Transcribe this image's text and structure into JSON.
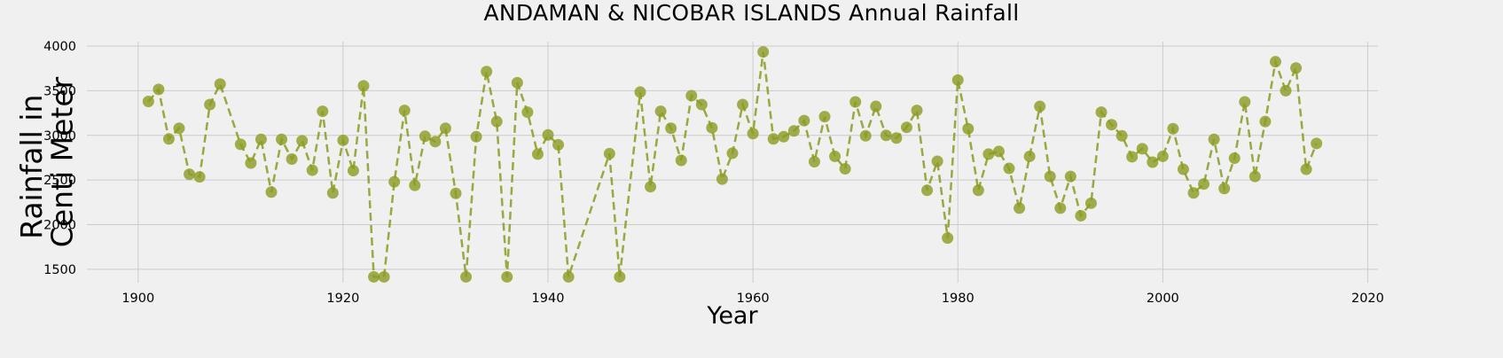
{
  "chart_data": {
    "type": "line",
    "title": "ANDAMAN & NICOBAR ISLANDS Annual Rainfall",
    "xlabel": "Year",
    "ylabel": [
      "Rainfall in",
      "Centi Meter"
    ],
    "xlim": [
      1895,
      2021
    ],
    "ylim": [
      1350,
      4050
    ],
    "xticks": [
      1900,
      1920,
      1940,
      1960,
      1980,
      2000,
      2020
    ],
    "yticks": [
      1500,
      2000,
      2500,
      3000,
      3500,
      4000
    ],
    "grid": true,
    "line_style": "dashed",
    "marker": "circle",
    "color": "#8c9b1e",
    "series": [
      {
        "x": [
          1901,
          1902,
          1903,
          1904,
          1905,
          1906,
          1907,
          1908,
          1910,
          1911,
          1912,
          1913,
          1914,
          1915,
          1916,
          1917,
          1918,
          1919,
          1920,
          1921,
          1922,
          1923,
          1924,
          1925,
          1926,
          1927,
          1928,
          1929,
          1930,
          1931,
          1932,
          1933,
          1934,
          1935,
          1936,
          1937,
          1938,
          1939,
          1940,
          1941,
          1942,
          1946,
          1947,
          1949,
          1950,
          1951,
          1952,
          1953,
          1954,
          1955,
          1956,
          1957,
          1958,
          1959,
          1960,
          1961,
          1962,
          1963,
          1964,
          1965,
          1966,
          1967,
          1968,
          1969,
          1970,
          1971,
          1972,
          1973,
          1974,
          1975,
          1976,
          1977,
          1978,
          1979,
          1980,
          1981,
          1982,
          1983,
          1984,
          1985,
          1986,
          1987,
          1988,
          1989,
          1990,
          1991,
          1992,
          1993,
          1994,
          1995,
          1996,
          1997,
          1998,
          1999,
          2000,
          2001,
          2002,
          2003,
          2004,
          2005,
          2006,
          2007,
          2008,
          2009,
          2010,
          2011,
          2012,
          2013,
          2014,
          2015
        ],
        "y": [
          3380,
          3515,
          2960,
          3080,
          2565,
          2535,
          3345,
          3575,
          2900,
          2690,
          2955,
          2365,
          2955,
          2735,
          2940,
          2610,
          3270,
          2355,
          2945,
          2605,
          3555,
          1415,
          1415,
          2480,
          3280,
          2440,
          2990,
          2930,
          3080,
          2350,
          1415,
          2985,
          3715,
          3155,
          1415,
          3590,
          3260,
          2790,
          3005,
          2895,
          1415,
          2795,
          1415,
          3485,
          2425,
          3270,
          3080,
          2720,
          3445,
          3345,
          3085,
          2510,
          2800,
          3345,
          3020,
          3935,
          2960,
          2985,
          3050,
          3165,
          2705,
          3210,
          2765,
          2625,
          3375,
          2995,
          3325,
          3000,
          2970,
          3090,
          3280,
          2385,
          2710,
          1850,
          3620,
          3075,
          2385,
          2790,
          2820,
          2630,
          2185,
          2765,
          3325,
          2540,
          2185,
          2540,
          2100,
          2240,
          3260,
          3120,
          2995,
          2760,
          2850,
          2700,
          2765,
          3075,
          2620,
          2355,
          2455,
          2955,
          2405,
          2745,
          3375,
          2540,
          3155,
          3825,
          3500,
          3755,
          2620,
          2910
        ]
      }
    ]
  }
}
